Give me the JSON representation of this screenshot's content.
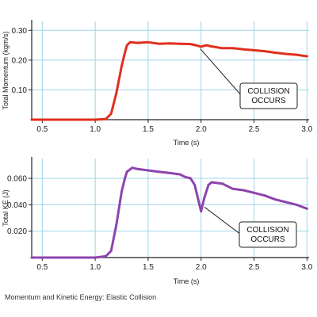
{
  "caption": "Momentum and Kinetic Energy: Elastic Collision",
  "chart_data": [
    {
      "type": "line",
      "title": "",
      "xlabel": "Time (s)",
      "ylabel": "Total Momentum (kgm/s)",
      "xlim": [
        0.4,
        3.02
      ],
      "ylim": [
        0,
        0.33
      ],
      "grid": true,
      "x_ticks": [
        "0.5",
        "1.0",
        "1.5",
        "2.0",
        "2.5",
        "3.0"
      ],
      "y_ticks": [
        "0.10",
        "0.20",
        "0.30"
      ],
      "series": [
        {
          "color": "#e0301e",
          "x": [
            0.4,
            1.0,
            1.1,
            1.15,
            1.2,
            1.25,
            1.28,
            1.3,
            1.33,
            1.4,
            1.5,
            1.6,
            1.7,
            1.8,
            1.9,
            1.95,
            2.0,
            2.05,
            2.1,
            2.2,
            2.3,
            2.4,
            2.5,
            2.6,
            2.7,
            2.8,
            2.9,
            3.0
          ],
          "y": [
            0.0,
            0.0,
            0.002,
            0.02,
            0.09,
            0.18,
            0.225,
            0.25,
            0.26,
            0.258,
            0.26,
            0.255,
            0.256,
            0.255,
            0.254,
            0.25,
            0.245,
            0.25,
            0.246,
            0.24,
            0.24,
            0.236,
            0.233,
            0.23,
            0.225,
            0.221,
            0.218,
            0.213
          ]
        }
      ],
      "annotation": {
        "lines": [
          "COLLISION",
          "OCCURS"
        ],
        "x": 1.97,
        "y": 0.246
      }
    },
    {
      "type": "line",
      "title": "",
      "xlabel": "Time (s)",
      "ylabel": "Total KE (J)",
      "xlim": [
        0.4,
        3.02
      ],
      "ylim": [
        0,
        0.075
      ],
      "grid": true,
      "x_ticks": [
        "0.5",
        "1.0",
        "1.5",
        "2.0",
        "2.5",
        "3.0"
      ],
      "y_ticks": [
        "0.020",
        "0.040",
        "0.060"
      ],
      "series": [
        {
          "color": "#8e44ad",
          "x": [
            0.4,
            1.0,
            1.1,
            1.15,
            1.2,
            1.25,
            1.28,
            1.3,
            1.35,
            1.4,
            1.5,
            1.6,
            1.7,
            1.8,
            1.85,
            1.9,
            1.94,
            1.97,
            2.0,
            2.03,
            2.07,
            2.1,
            2.2,
            2.3,
            2.4,
            2.5,
            2.6,
            2.7,
            2.8,
            2.9,
            3.0
          ],
          "y": [
            0.0,
            0.0,
            0.001,
            0.005,
            0.025,
            0.05,
            0.06,
            0.065,
            0.068,
            0.067,
            0.066,
            0.065,
            0.064,
            0.063,
            0.061,
            0.06,
            0.055,
            0.045,
            0.035,
            0.045,
            0.055,
            0.057,
            0.056,
            0.052,
            0.051,
            0.049,
            0.047,
            0.044,
            0.042,
            0.04,
            0.037
          ]
        }
      ],
      "annotation": {
        "lines": [
          "COLLISION",
          "OCCURS"
        ],
        "x": 2.01,
        "y": 0.04
      }
    }
  ]
}
